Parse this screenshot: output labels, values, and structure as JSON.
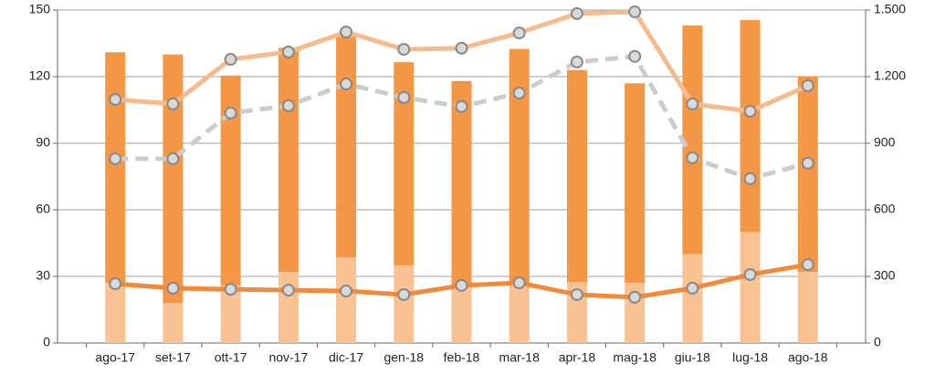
{
  "chart_data": {
    "type": "bar",
    "categories": [
      "ago-17",
      "set-17",
      "ott-17",
      "nov-17",
      "dic-17",
      "gen-18",
      "feb-18",
      "mar-18",
      "apr-18",
      "mag-18",
      "giu-18",
      "lug-18",
      "ago-18"
    ],
    "stacked": true,
    "grid": true,
    "ylim": [
      0,
      150
    ],
    "yticks": [
      0,
      30,
      60,
      90,
      120,
      150
    ],
    "y2lim": [
      0,
      1500
    ],
    "y2ticks": [
      0,
      300,
      600,
      900,
      {
        "value": 1200,
        "label": "1.200"
      },
      {
        "value": 1500,
        "label": "1.500"
      }
    ],
    "series": [
      {
        "type": "bar",
        "color": "#f8c293",
        "values": [
          27,
          18,
          26,
          32,
          38.5,
          35,
          26,
          27,
          27.5,
          27,
          40,
          50,
          32
        ]
      },
      {
        "type": "bar",
        "color": "#f39645",
        "values": [
          104,
          112,
          94.5,
          101,
          99.5,
          91.5,
          92,
          105.5,
          95.5,
          90,
          103,
          95.5,
          88
        ]
      },
      {
        "type": "line",
        "axis": "y2",
        "color": "#f6bb8c",
        "dashed": false,
        "values": [
          1097,
          1077,
          1278,
          1311,
          1401,
          1323,
          1328,
          1397,
          1484,
          1492,
          1077,
          1044,
          1159
        ]
      },
      {
        "type": "line",
        "axis": "y2",
        "color": "#cccccc",
        "dashed": true,
        "values": [
          830,
          830,
          1036,
          1069,
          1167,
          1106,
          1065,
          1126,
          1266,
          1291,
          834,
          740,
          810
        ]
      },
      {
        "type": "line",
        "axis": "y2",
        "color": "#f08a3c",
        "dashed": false,
        "values": [
          267,
          247,
          242,
          238,
          234,
          218,
          259,
          271,
          218,
          206,
          247,
          308,
          353
        ]
      }
    ]
  }
}
